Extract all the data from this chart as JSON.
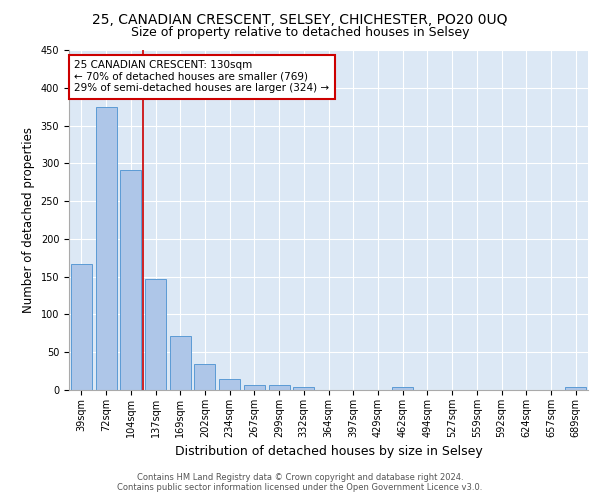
{
  "title": "25, CANADIAN CRESCENT, SELSEY, CHICHESTER, PO20 0UQ",
  "subtitle": "Size of property relative to detached houses in Selsey",
  "xlabel": "Distribution of detached houses by size in Selsey",
  "ylabel": "Number of detached properties",
  "categories": [
    "39sqm",
    "72sqm",
    "104sqm",
    "137sqm",
    "169sqm",
    "202sqm",
    "234sqm",
    "267sqm",
    "299sqm",
    "332sqm",
    "364sqm",
    "397sqm",
    "429sqm",
    "462sqm",
    "494sqm",
    "527sqm",
    "559sqm",
    "592sqm",
    "624sqm",
    "657sqm",
    "689sqm"
  ],
  "values": [
    167,
    375,
    291,
    147,
    71,
    35,
    14,
    7,
    7,
    4,
    0,
    0,
    0,
    4,
    0,
    0,
    0,
    0,
    0,
    0,
    4
  ],
  "bar_color": "#aec6e8",
  "bar_edge_color": "#5b9bd5",
  "vline_x": 2.5,
  "vline_color": "#cc0000",
  "annotation_line1": "25 CANADIAN CRESCENT: 130sqm",
  "annotation_line2": "← 70% of detached houses are smaller (769)",
  "annotation_line3": "29% of semi-detached houses are larger (324) →",
  "annotation_box_color": "#ffffff",
  "annotation_box_edge": "#cc0000",
  "ylim": [
    0,
    450
  ],
  "yticks": [
    0,
    50,
    100,
    150,
    200,
    250,
    300,
    350,
    400,
    450
  ],
  "background_color": "#dce8f5",
  "footer_line1": "Contains HM Land Registry data © Crown copyright and database right 2024.",
  "footer_line2": "Contains public sector information licensed under the Open Government Licence v3.0.",
  "title_fontsize": 10,
  "subtitle_fontsize": 9,
  "xlabel_fontsize": 9,
  "ylabel_fontsize": 8.5,
  "tick_fontsize": 7,
  "annotation_fontsize": 7.5,
  "footer_fontsize": 6
}
